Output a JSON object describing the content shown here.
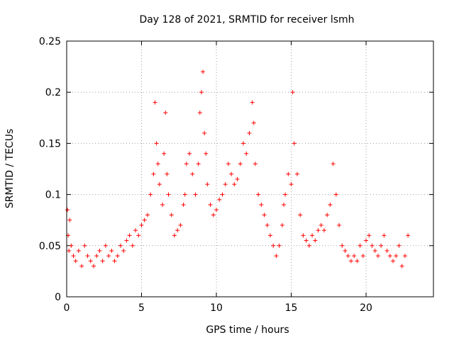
{
  "chart_data": {
    "type": "scatter",
    "title": "Day 128 of 2021, SRMTID for receiver lsmh",
    "xlabel": "GPS time / hours",
    "ylabel": "SRMTID / TECUs",
    "xlim": [
      0,
      24.5
    ],
    "ylim": [
      0,
      0.25
    ],
    "x_ticks": [
      0,
      5,
      10,
      15,
      20
    ],
    "y_ticks": [
      0,
      0.05,
      0.1,
      0.15,
      0.2,
      0.25
    ],
    "x_tick_labels": [
      "0",
      "5",
      "10",
      "15",
      "20"
    ],
    "y_tick_labels": [
      "0",
      "0.05",
      "0.1",
      "0.15",
      "0.2",
      "0.25"
    ],
    "grid": true,
    "marker": "plus",
    "color": "#ff0000",
    "series": [
      {
        "name": "SRMTID",
        "x": [
          0.05,
          0.1,
          0.15,
          0.2,
          0.3,
          0.45,
          0.6,
          0.8,
          1.0,
          1.2,
          1.4,
          1.6,
          1.8,
          2.0,
          2.2,
          2.4,
          2.6,
          2.8,
          3.0,
          3.2,
          3.4,
          3.6,
          3.8,
          4.0,
          4.2,
          4.4,
          4.6,
          4.8,
          5.0,
          5.2,
          5.4,
          5.6,
          5.8,
          5.9,
          6.0,
          6.1,
          6.2,
          6.4,
          6.5,
          6.6,
          6.7,
          6.8,
          7.0,
          7.2,
          7.4,
          7.6,
          7.8,
          7.9,
          8.0,
          8.2,
          8.4,
          8.6,
          8.8,
          8.9,
          9.0,
          9.1,
          9.2,
          9.3,
          9.4,
          9.6,
          9.8,
          10.0,
          10.2,
          10.4,
          10.6,
          10.8,
          11.0,
          11.2,
          11.4,
          11.6,
          11.8,
          12.0,
          12.2,
          12.4,
          12.5,
          12.6,
          12.8,
          13.0,
          13.2,
          13.4,
          13.6,
          13.8,
          14.0,
          14.2,
          14.4,
          14.5,
          14.6,
          14.8,
          15.0,
          15.1,
          15.2,
          15.4,
          15.6,
          15.8,
          16.0,
          16.2,
          16.4,
          16.6,
          16.8,
          17.0,
          17.2,
          17.4,
          17.6,
          17.8,
          18.0,
          18.2,
          18.4,
          18.6,
          18.8,
          19.0,
          19.2,
          19.4,
          19.6,
          19.8,
          20.0,
          20.2,
          20.4,
          20.6,
          20.8,
          21.0,
          21.2,
          21.4,
          21.6,
          21.8,
          22.0,
          22.2,
          22.4,
          22.6,
          22.8
        ],
        "y": [
          0.085,
          0.06,
          0.045,
          0.075,
          0.05,
          0.04,
          0.035,
          0.045,
          0.03,
          0.05,
          0.04,
          0.035,
          0.03,
          0.04,
          0.045,
          0.035,
          0.05,
          0.04,
          0.045,
          0.035,
          0.04,
          0.05,
          0.045,
          0.055,
          0.06,
          0.05,
          0.065,
          0.06,
          0.07,
          0.075,
          0.08,
          0.1,
          0.12,
          0.19,
          0.15,
          0.13,
          0.11,
          0.09,
          0.14,
          0.18,
          0.12,
          0.1,
          0.08,
          0.06,
          0.065,
          0.07,
          0.09,
          0.1,
          0.13,
          0.14,
          0.12,
          0.1,
          0.13,
          0.18,
          0.2,
          0.22,
          0.16,
          0.14,
          0.11,
          0.09,
          0.08,
          0.085,
          0.095,
          0.1,
          0.11,
          0.13,
          0.12,
          0.11,
          0.115,
          0.13,
          0.15,
          0.14,
          0.16,
          0.19,
          0.17,
          0.13,
          0.1,
          0.09,
          0.08,
          0.07,
          0.06,
          0.05,
          0.04,
          0.05,
          0.07,
          0.09,
          0.1,
          0.12,
          0.11,
          0.2,
          0.15,
          0.12,
          0.08,
          0.06,
          0.055,
          0.05,
          0.06,
          0.055,
          0.065,
          0.07,
          0.065,
          0.08,
          0.09,
          0.13,
          0.1,
          0.07,
          0.05,
          0.045,
          0.04,
          0.035,
          0.04,
          0.035,
          0.05,
          0.04,
          0.055,
          0.06,
          0.05,
          0.045,
          0.04,
          0.05,
          0.06,
          0.045,
          0.04,
          0.035,
          0.04,
          0.05,
          0.03,
          0.04,
          0.06
        ]
      }
    ]
  }
}
